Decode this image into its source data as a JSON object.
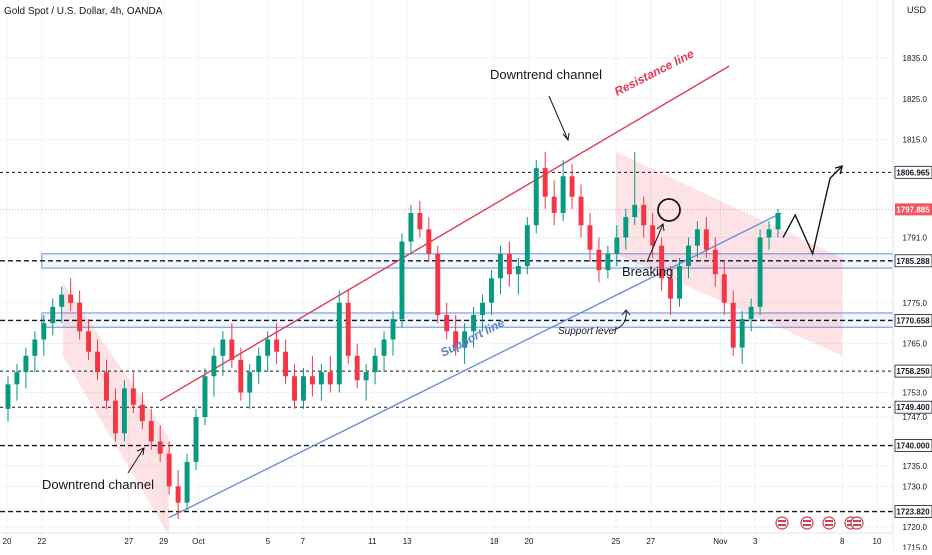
{
  "header": {
    "symbol_title": "Gold Spot / U.S. Dollar, 4h, OANDA",
    "currency_label": "USD"
  },
  "chart_data": {
    "type": "candlestick",
    "title": "Gold Spot / U.S. Dollar, 4h, OANDA",
    "y_axis_ticks": [
      1835.0,
      1825.0,
      1815.0,
      1791.0,
      1775.0,
      1765.0,
      1753.0,
      1747.0,
      1735.0,
      1730.0,
      1720.0,
      1715.0
    ],
    "x_axis_ticks": [
      {
        "label": "20",
        "t": 0
      },
      {
        "label": "22",
        "t": 2
      },
      {
        "label": "27",
        "t": 7
      },
      {
        "label": "29",
        "t": 9
      },
      {
        "label": "Oct",
        "t": 11
      },
      {
        "label": "5",
        "t": 15
      },
      {
        "label": "7",
        "t": 17
      },
      {
        "label": "11",
        "t": 21
      },
      {
        "label": "13",
        "t": 23
      },
      {
        "label": "18",
        "t": 28
      },
      {
        "label": "20",
        "t": 30
      },
      {
        "label": "25",
        "t": 35
      },
      {
        "label": "27",
        "t": 37
      },
      {
        "label": "Nov",
        "t": 41
      },
      {
        "label": "3",
        "t": 43
      },
      {
        "label": "8",
        "t": 48
      },
      {
        "label": "10",
        "t": 50
      }
    ],
    "price_levels": [
      {
        "label": "1806.965",
        "price": 1806.965,
        "style": "dashed",
        "highlight": false
      },
      {
        "label": "1797.885",
        "price": 1797.885,
        "style": "current",
        "highlight": true
      },
      {
        "label": "1785.288",
        "price": 1785.288,
        "style": "dashed-bold",
        "highlight": false
      },
      {
        "label": "1770.658",
        "price": 1770.658,
        "style": "dashed-bold",
        "highlight": false
      },
      {
        "label": "1758.250",
        "price": 1758.25,
        "style": "dashed",
        "highlight": false
      },
      {
        "label": "1749.400",
        "price": 1749.4,
        "style": "dashed",
        "highlight": false
      },
      {
        "label": "1740.000",
        "price": 1740.0,
        "style": "dashed-bold",
        "highlight": false
      },
      {
        "label": "1723.820",
        "price": 1723.82,
        "style": "dashed-bold",
        "highlight": false
      }
    ],
    "zones": [
      {
        "low": 1783.5,
        "high": 1787.0
      },
      {
        "low": 1769.0,
        "high": 1772.5
      }
    ],
    "annotations": {
      "downtrend_channel_top": "Downtrend channel",
      "downtrend_channel_bottom": "Downtrend channel",
      "resistance_line": "Resistance line",
      "support_line": "Support line",
      "support_level": "Support level",
      "breaking": "Breaking"
    },
    "trendlines": {
      "resistance": {
        "t1": 8.8,
        "p1": 1751.0,
        "t2": 41.5,
        "p2": 1833.0
      },
      "support": {
        "t1": 9.3,
        "p1": 1722.3,
        "t2": 44.5,
        "p2": 1797.0
      }
    },
    "channels": [
      {
        "t": [
          3.2,
          9.3,
          9.3,
          3.2
        ],
        "p": [
          1780.0,
          1742.0,
          1718.0,
          1762.0
        ]
      },
      {
        "t": [
          35.0,
          48.0,
          48.0,
          35.0
        ],
        "p": [
          1812.0,
          1786.0,
          1762.0,
          1787.0
        ]
      }
    ],
    "projection": {
      "t": [
        44.6,
        45.3,
        46.3,
        47.3,
        48.0
      ],
      "p": [
        1791.0,
        1796.5,
        1787.0,
        1805.5,
        1808.5
      ]
    },
    "candles": [
      [
        1749,
        1757,
        1746,
        1755
      ],
      [
        1755,
        1760,
        1751,
        1758
      ],
      [
        1758,
        1764,
        1754,
        1762
      ],
      [
        1762,
        1768,
        1758,
        1766
      ],
      [
        1766,
        1772,
        1762,
        1770
      ],
      [
        1770,
        1776,
        1767,
        1774
      ],
      [
        1774,
        1779,
        1770,
        1777
      ],
      [
        1777,
        1781,
        1773,
        1775
      ],
      [
        1775,
        1778,
        1766,
        1768
      ],
      [
        1768,
        1771,
        1761,
        1763
      ],
      [
        1763,
        1766,
        1756,
        1758
      ],
      [
        1758,
        1761,
        1749,
        1751
      ],
      [
        1751,
        1754,
        1741,
        1743
      ],
      [
        1743,
        1756,
        1741,
        1754
      ],
      [
        1754,
        1758,
        1748,
        1750
      ],
      [
        1750,
        1753,
        1744,
        1746
      ],
      [
        1746,
        1749,
        1739,
        1741
      ],
      [
        1741,
        1745,
        1736,
        1738
      ],
      [
        1738,
        1741,
        1728,
        1730
      ],
      [
        1730,
        1734,
        1722,
        1726
      ],
      [
        1726,
        1738,
        1724,
        1736
      ],
      [
        1736,
        1749,
        1734,
        1747
      ],
      [
        1747,
        1759,
        1745,
        1757
      ],
      [
        1757,
        1764,
        1752,
        1762
      ],
      [
        1762,
        1768,
        1757,
        1766
      ],
      [
        1766,
        1770,
        1759,
        1761
      ],
      [
        1761,
        1764,
        1751,
        1753
      ],
      [
        1753,
        1760,
        1749,
        1758
      ],
      [
        1758,
        1764,
        1755,
        1762
      ],
      [
        1762,
        1768,
        1758,
        1766
      ],
      [
        1766,
        1770,
        1760,
        1763
      ],
      [
        1763,
        1766,
        1755,
        1757
      ],
      [
        1757,
        1760,
        1749,
        1751
      ],
      [
        1751,
        1759,
        1749,
        1757
      ],
      [
        1757,
        1762,
        1752,
        1755
      ],
      [
        1755,
        1760,
        1751,
        1758
      ],
      [
        1758,
        1762,
        1753,
        1755
      ],
      [
        1755,
        1778,
        1753,
        1775
      ],
      [
        1775,
        1778,
        1760,
        1762
      ],
      [
        1762,
        1765,
        1754,
        1756
      ],
      [
        1756,
        1760,
        1751,
        1758
      ],
      [
        1758,
        1764,
        1755,
        1762
      ],
      [
        1762,
        1768,
        1758,
        1766
      ],
      [
        1766,
        1773,
        1762,
        1771
      ],
      [
        1771,
        1792,
        1769,
        1790
      ],
      [
        1790,
        1799,
        1787,
        1797
      ],
      [
        1797,
        1800,
        1791,
        1793
      ],
      [
        1793,
        1796,
        1785,
        1787
      ],
      [
        1787,
        1789,
        1770,
        1772
      ],
      [
        1772,
        1775,
        1766,
        1768
      ],
      [
        1768,
        1772,
        1762,
        1764
      ],
      [
        1764,
        1770,
        1760,
        1768
      ],
      [
        1768,
        1774,
        1764,
        1772
      ],
      [
        1772,
        1777,
        1768,
        1775
      ],
      [
        1775,
        1783,
        1772,
        1781
      ],
      [
        1781,
        1789,
        1777,
        1787
      ],
      [
        1787,
        1790,
        1779,
        1782
      ],
      [
        1782,
        1786,
        1777,
        1784
      ],
      [
        1784,
        1796,
        1782,
        1794
      ],
      [
        1794,
        1810,
        1792,
        1808
      ],
      [
        1808,
        1812,
        1798,
        1801
      ],
      [
        1801,
        1805,
        1794,
        1797
      ],
      [
        1797,
        1810,
        1795,
        1806
      ],
      [
        1806,
        1809,
        1798,
        1801
      ],
      [
        1801,
        1804,
        1791,
        1794
      ],
      [
        1794,
        1797,
        1785,
        1788
      ],
      [
        1788,
        1791,
        1780,
        1783
      ],
      [
        1783,
        1789,
        1781,
        1787
      ],
      [
        1787,
        1794,
        1784,
        1791
      ],
      [
        1791,
        1798,
        1788,
        1796
      ],
      [
        1796,
        1812,
        1794,
        1799
      ],
      [
        1799,
        1801,
        1791,
        1794
      ],
      [
        1794,
        1797,
        1786,
        1789
      ],
      [
        1789,
        1791,
        1778,
        1781
      ],
      [
        1781,
        1784,
        1772,
        1776
      ],
      [
        1776,
        1786,
        1774,
        1784
      ],
      [
        1784,
        1791,
        1781,
        1789
      ],
      [
        1789,
        1795,
        1786,
        1793
      ],
      [
        1793,
        1796,
        1786,
        1788
      ],
      [
        1788,
        1791,
        1779,
        1782
      ],
      [
        1782,
        1785,
        1772,
        1775
      ],
      [
        1775,
        1778,
        1762,
        1764
      ],
      [
        1764,
        1773,
        1760,
        1771
      ],
      [
        1771,
        1776,
        1768,
        1774
      ],
      [
        1774,
        1793,
        1772,
        1791
      ],
      [
        1791,
        1795,
        1788,
        1793
      ],
      [
        1793,
        1798,
        1791,
        1797
      ]
    ]
  }
}
